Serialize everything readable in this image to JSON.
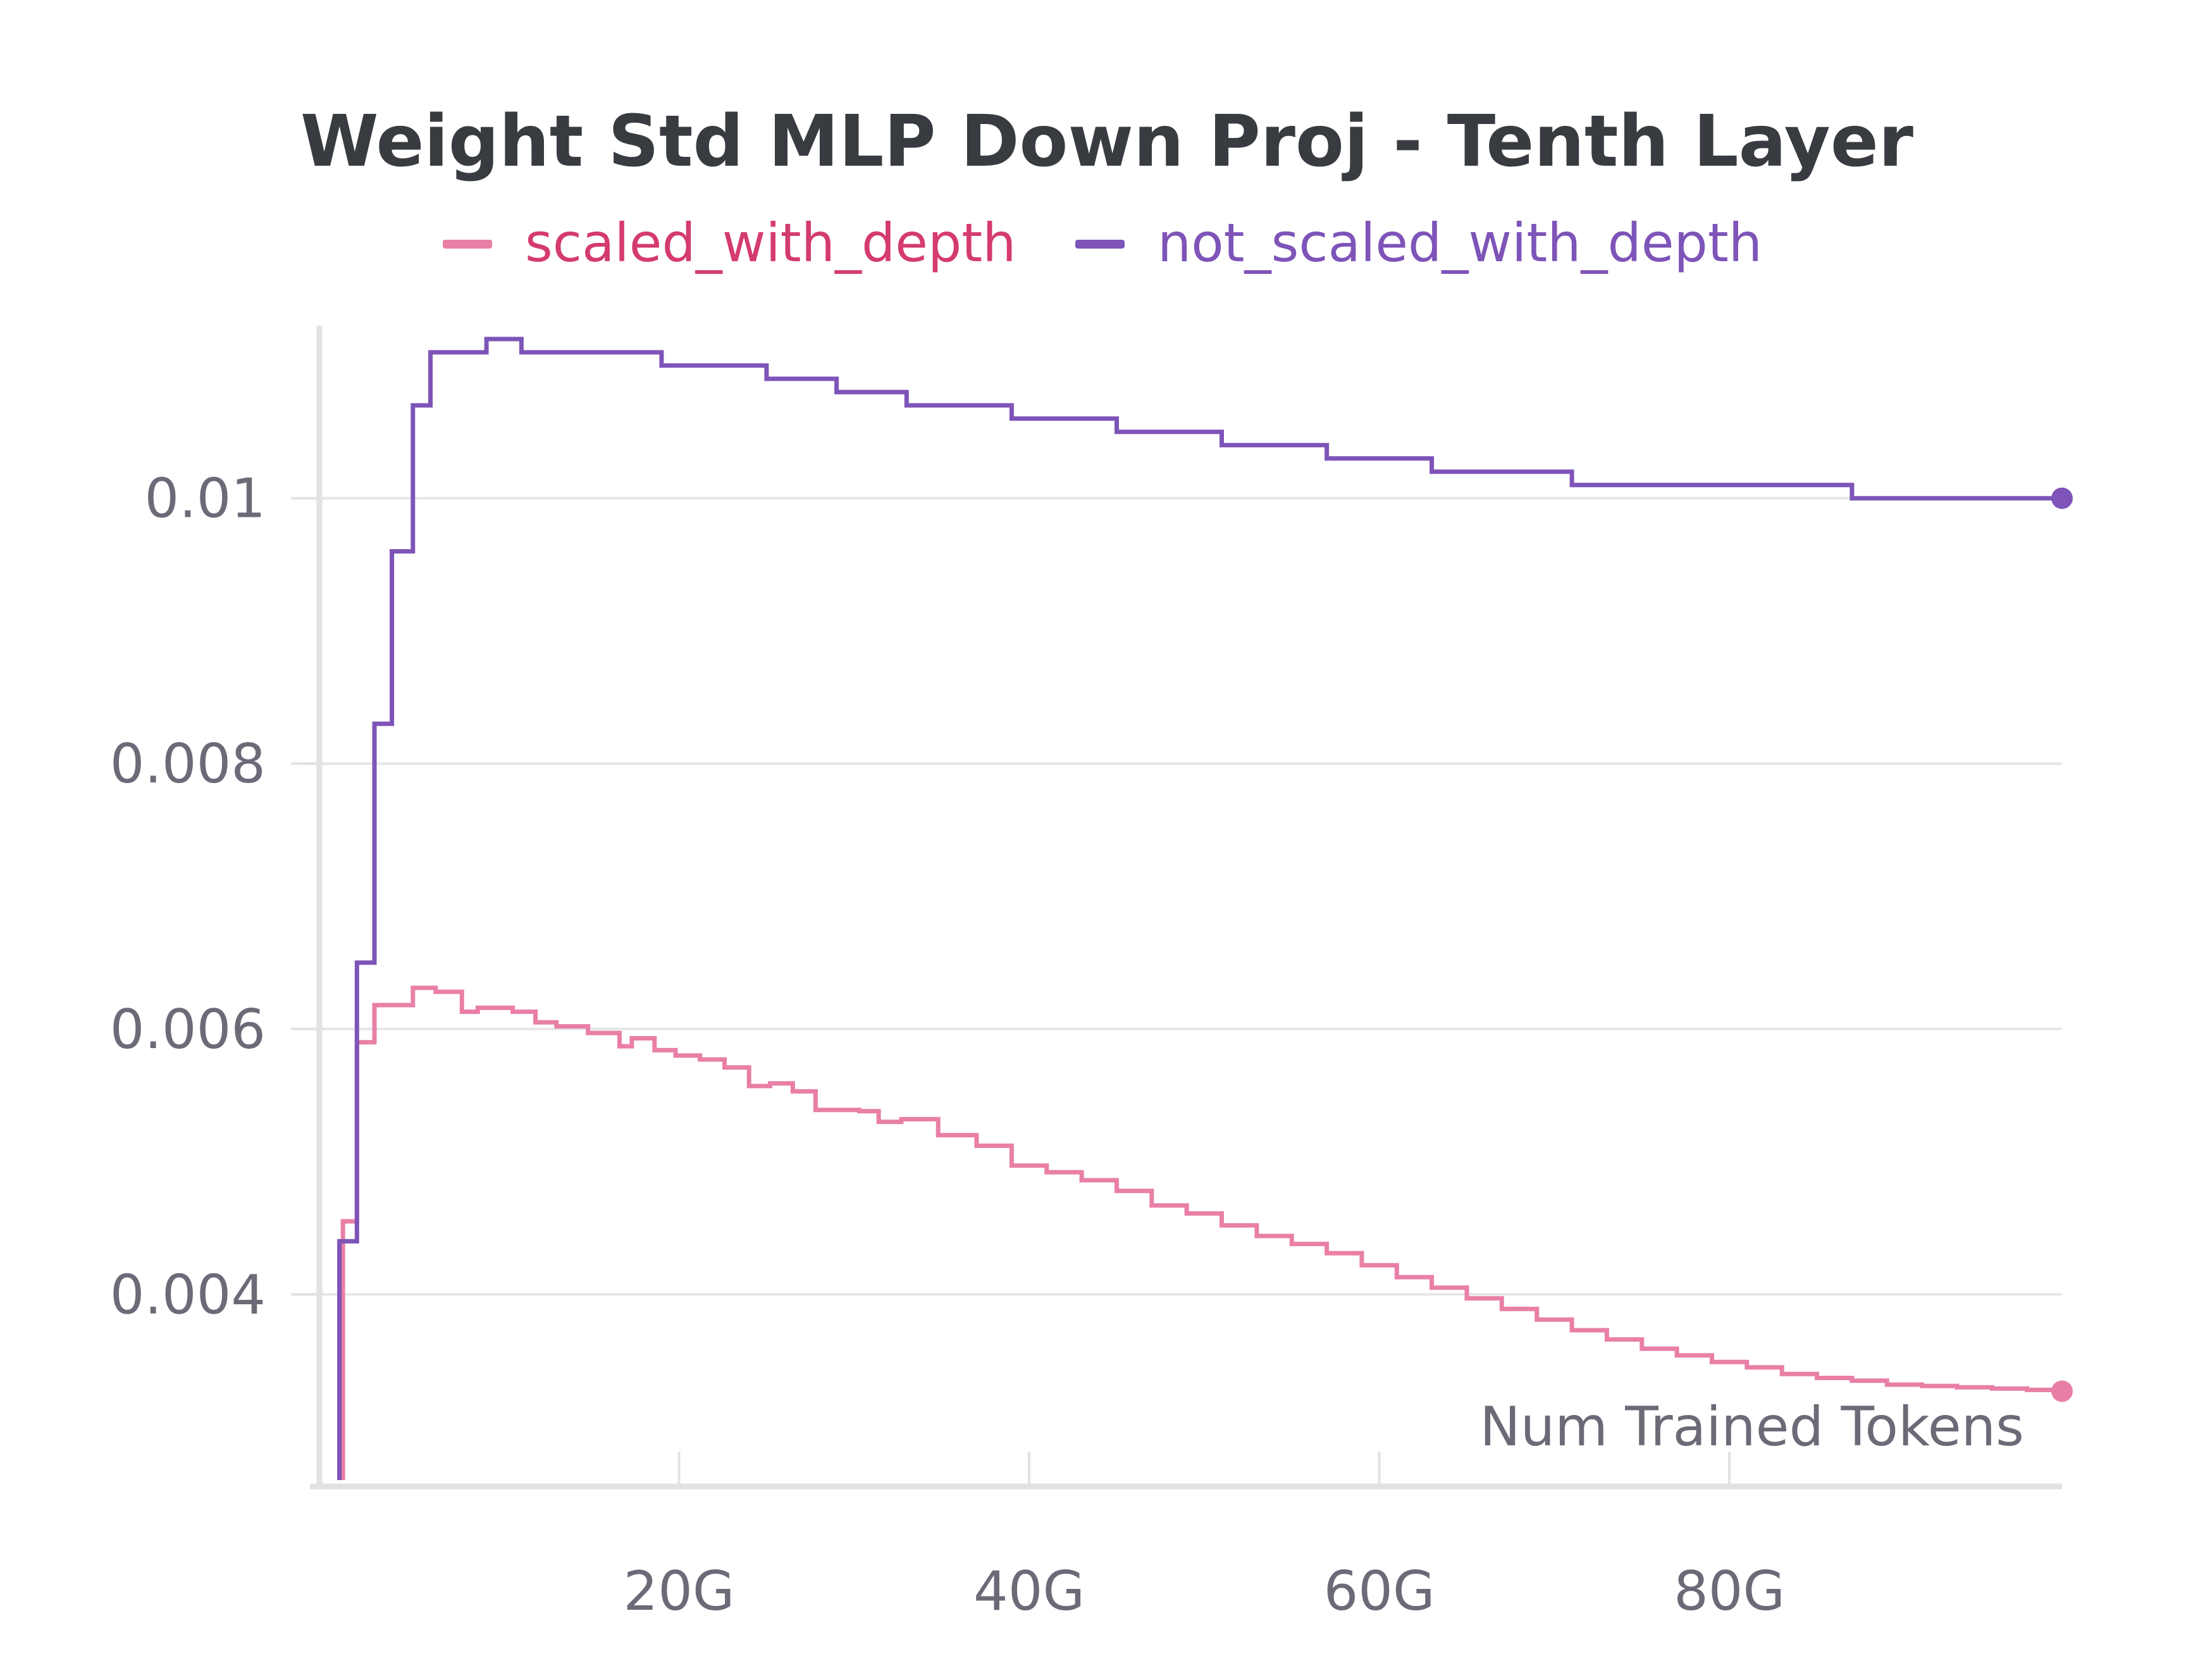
{
  "chart_data": {
    "type": "line",
    "title": "Weight Std MLP Down Proj - Tenth Layer",
    "xlabel": "Num Trained Tokens",
    "ylabel": "",
    "x_unit_suffix": "G",
    "xlim": [
      0,
      99
    ],
    "ylim": [
      0.0026,
      0.0113
    ],
    "x_ticks": [
      20,
      40,
      60,
      80
    ],
    "x_tick_labels": [
      "20G",
      "40G",
      "60G",
      "80G"
    ],
    "y_ticks": [
      0.004,
      0.006,
      0.008,
      0.01
    ],
    "y_tick_labels": [
      "0.004",
      "0.006",
      "0.008",
      "0.01"
    ],
    "grid": true,
    "legend_position": "top-center",
    "step": true,
    "series": [
      {
        "name": "scaled_with_depth",
        "color": "#e97fa6",
        "text_color": "#d43b6e",
        "x": [
          0.8,
          1.6,
          2.6,
          4.8,
          6.1,
          7.6,
          8.5,
          10.5,
          11.8,
          13.0,
          14.8,
          16.6,
          17.3,
          18.6,
          19.8,
          21.2,
          22.6,
          24.0,
          25.2,
          26.5,
          27.8,
          30.3,
          31.4,
          32.7,
          34.8,
          37.0,
          39.0,
          41.0,
          43.0,
          45.0,
          47.0,
          49.0,
          51.0,
          53.0,
          55.0,
          57.0,
          59.0,
          61.0,
          63.0,
          65.0,
          67.0,
          69.0,
          71.0,
          73.0,
          75.0,
          77.0,
          79.0,
          81.0,
          83.0,
          85.0,
          87.0,
          89.0,
          91.0,
          93.0,
          95.0,
          97.0,
          99.0
        ],
        "values": [
          0.00455,
          0.0059,
          0.00618,
          0.00631,
          0.00628,
          0.00613,
          0.00616,
          0.00613,
          0.00605,
          0.00602,
          0.00597,
          0.00587,
          0.00593,
          0.00584,
          0.0058,
          0.00577,
          0.00571,
          0.00557,
          0.00559,
          0.00553,
          0.00539,
          0.00538,
          0.0053,
          0.00532,
          0.0052,
          0.00512,
          0.00497,
          0.00492,
          0.00486,
          0.00478,
          0.00467,
          0.00461,
          0.00452,
          0.00444,
          0.00438,
          0.00431,
          0.00422,
          0.00413,
          0.00405,
          0.00397,
          0.00389,
          0.00381,
          0.00373,
          0.00366,
          0.00359,
          0.00354,
          0.00349,
          0.00345,
          0.0034,
          0.00337,
          0.00335,
          0.00332,
          0.00331,
          0.0033,
          0.00329,
          0.00328,
          0.00327
        ]
      },
      {
        "name": "not_scaled_with_depth",
        "color": "#7e54b8",
        "text_color": "#7e54b8",
        "x": [
          0.6,
          1.6,
          2.6,
          3.6,
          4.8,
          5.8,
          7.0,
          9.0,
          11.0,
          13.0,
          15.0,
          17.0,
          19.0,
          21.0,
          23.0,
          25.0,
          27.0,
          29.0,
          31.0,
          33.0,
          35.0,
          37.0,
          39.0,
          41.0,
          43.0,
          45.0,
          47.0,
          49.0,
          51.0,
          53.0,
          55.0,
          57.0,
          59.0,
          61.0,
          63.0,
          65.0,
          67.0,
          69.0,
          71.0,
          73.0,
          75.0,
          77.0,
          79.0,
          81.0,
          83.0,
          85.0,
          87.0,
          89.0,
          91.0,
          93.0,
          95.0,
          97.0,
          99.0
        ],
        "values": [
          0.0044,
          0.0065,
          0.0083,
          0.0096,
          0.0107,
          0.0111,
          0.0111,
          0.0112,
          0.0111,
          0.0111,
          0.0111,
          0.0111,
          0.011,
          0.011,
          0.011,
          0.0109,
          0.0109,
          0.0108,
          0.0108,
          0.0107,
          0.0107,
          0.0107,
          0.0106,
          0.0106,
          0.0106,
          0.0105,
          0.0105,
          0.0105,
          0.0104,
          0.0104,
          0.0104,
          0.0103,
          0.0103,
          0.0103,
          0.0102,
          0.0102,
          0.0102,
          0.0102,
          0.0101,
          0.0101,
          0.0101,
          0.0101,
          0.0101,
          0.0101,
          0.0101,
          0.0101,
          0.01,
          0.01,
          0.01,
          0.01,
          0.01,
          0.01,
          0.01
        ]
      }
    ]
  }
}
